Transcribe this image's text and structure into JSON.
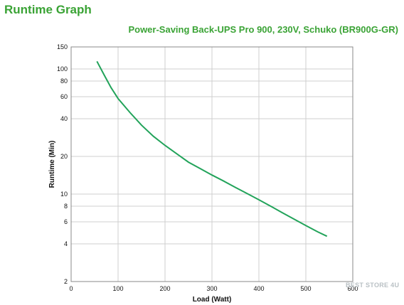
{
  "page": {
    "title": "Runtime Graph"
  },
  "watermark": "BEST STORE 4U",
  "chart_data": {
    "type": "line",
    "title": "",
    "subtitle": "Power-Saving Back-UPS Pro 900, 230V, Schuko (BR900G-GR)",
    "xlabel": "Load (Watt)",
    "ylabel": "Runtime (Min)",
    "xlim": [
      0,
      600
    ],
    "ylim": [
      2,
      150
    ],
    "yscale": "log",
    "x_ticks": [
      0,
      100,
      200,
      300,
      400,
      500,
      600
    ],
    "y_ticks": [
      2,
      4,
      6,
      8,
      10,
      20,
      40,
      60,
      80,
      100,
      150
    ],
    "grid": true,
    "line_color": "#22a35a",
    "series": [
      {
        "x": [
          55,
          70,
          85,
          100,
          125,
          150,
          175,
          200,
          225,
          250,
          275,
          300,
          325,
          350,
          375,
          400,
          425,
          450,
          475,
          500,
          525,
          545
        ],
        "values": [
          115,
          90,
          71,
          58,
          45,
          35.5,
          29,
          24.5,
          21,
          18,
          16,
          14.2,
          12.7,
          11.3,
          10.1,
          9.0,
          8.0,
          7.1,
          6.3,
          5.6,
          5.0,
          4.6
        ]
      }
    ]
  }
}
